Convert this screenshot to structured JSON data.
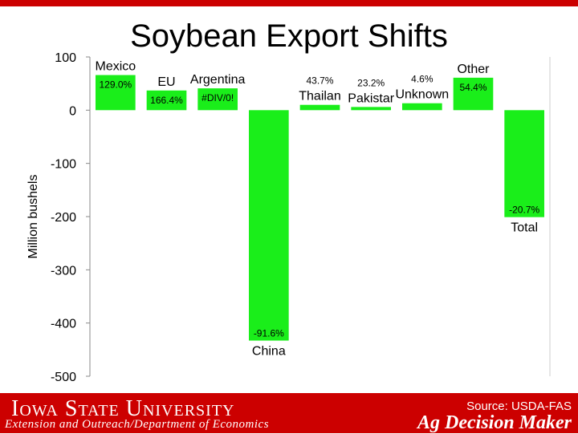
{
  "chart_data": {
    "type": "bar",
    "title": "Soybean Export Shifts",
    "ylabel": "Million bushels",
    "xlabel": "",
    "ylim": [
      -500,
      100
    ],
    "yticks": [
      100,
      0,
      -100,
      -200,
      -300,
      -400,
      -500
    ],
    "grid": false,
    "legend": "none",
    "categories": [
      "Mexico",
      "EU",
      "Argentina",
      "China",
      "Thailand",
      "Pakistan",
      "Unknown",
      "Other",
      "Total"
    ],
    "category_display": [
      "Mexico",
      "EU",
      "Argentina",
      "China",
      "Thailan",
      "Pakistar",
      "Unknown",
      "Other",
      "Total"
    ],
    "values": [
      66,
      37,
      41,
      -433,
      10,
      6,
      13,
      61,
      -201
    ],
    "data_labels": [
      "129.0%",
      "166.4%",
      "#DIV/0!",
      "-91.6%",
      "43.7%",
      "23.2%",
      "4.6%",
      "54.4%",
      "-20.7%"
    ],
    "bar_color": "#1aee1a"
  },
  "footer": {
    "university": "Iowa State University",
    "subtitle": "Extension and Outreach/Department of Economics",
    "source": "Source: USDA-FAS",
    "program": "Ag Decision Maker"
  },
  "colors": {
    "footer_bg": "#cc0000",
    "bar": "#1aee1a"
  }
}
